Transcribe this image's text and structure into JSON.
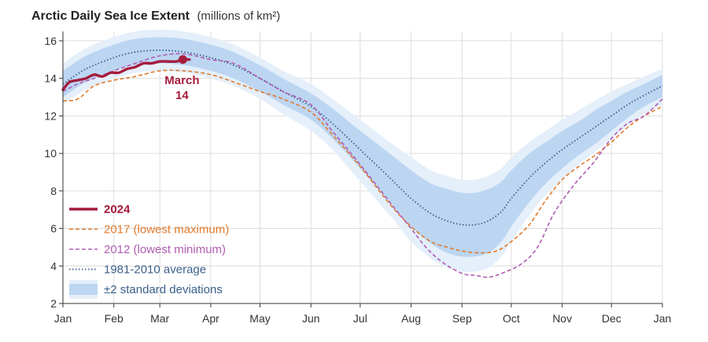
{
  "chart_data": {
    "type": "line",
    "title": "Arctic Daily Sea Ice Extent",
    "unit_suffix": "(millions of km²)",
    "xlabel": "",
    "ylabel": "",
    "x_tick_labels": [
      "Jan",
      "Feb",
      "Mar",
      "Apr",
      "May",
      "Jun",
      "Jul",
      "Aug",
      "Sep",
      "Oct",
      "Nov",
      "Dec",
      "Jan"
    ],
    "x_tick_day": [
      1,
      32,
      60,
      91,
      121,
      152,
      182,
      213,
      244,
      274,
      305,
      335,
      366
    ],
    "y_ticks": [
      2,
      4,
      6,
      8,
      10,
      12,
      14,
      16
    ],
    "ylim": [
      2,
      16.5
    ],
    "xlim": [
      1,
      366
    ],
    "grid": true,
    "legend_position": "bottom-left",
    "annotation": {
      "line1": "March",
      "line2": "14",
      "day": 74,
      "value": 15.0
    },
    "series": [
      {
        "name": "2024",
        "color": "#a61c3c",
        "style": "solid-thick",
        "x": [
          1,
          5,
          10,
          15,
          20,
          25,
          30,
          35,
          40,
          45,
          50,
          55,
          60,
          65,
          70,
          74,
          78
        ],
        "y": [
          13.4,
          13.8,
          13.9,
          14.0,
          14.2,
          14.1,
          14.3,
          14.3,
          14.5,
          14.6,
          14.8,
          14.8,
          14.9,
          14.9,
          14.9,
          15.0,
          15.0
        ]
      },
      {
        "name": "2017 (lowest maximum)",
        "color": "#e07b2e",
        "style": "dashed",
        "x": [
          1,
          10,
          20,
          32,
          45,
          60,
          75,
          91,
          105,
          121,
          135,
          152,
          165,
          182,
          200,
          213,
          225,
          235,
          244,
          255,
          265,
          274,
          285,
          295,
          305,
          315,
          325,
          335,
          345,
          355,
          366
        ],
        "y": [
          12.8,
          12.9,
          13.6,
          13.9,
          14.1,
          14.4,
          14.4,
          14.2,
          13.8,
          13.3,
          12.9,
          12.2,
          11.0,
          9.3,
          7.3,
          6.1,
          5.3,
          5.0,
          4.8,
          4.7,
          4.8,
          5.3,
          6.2,
          7.5,
          8.6,
          9.3,
          9.9,
          10.6,
          11.4,
          12.0,
          12.5
        ]
      },
      {
        "name": "2012 (lowest minimum)",
        "color": "#b05db2",
        "style": "dashed",
        "x": [
          1,
          10,
          20,
          32,
          45,
          60,
          75,
          91,
          105,
          121,
          135,
          152,
          165,
          182,
          200,
          213,
          222,
          232,
          244,
          252,
          260,
          268,
          280,
          290,
          300,
          312,
          324,
          335,
          345,
          355,
          366
        ],
        "y": [
          13.3,
          13.7,
          14.0,
          14.4,
          14.8,
          15.2,
          15.3,
          15.0,
          14.8,
          14.0,
          13.3,
          12.6,
          11.2,
          9.4,
          7.4,
          6.0,
          5.0,
          4.2,
          3.6,
          3.5,
          3.4,
          3.6,
          4.1,
          5.0,
          6.8,
          8.3,
          9.5,
          10.8,
          11.6,
          12.0,
          12.9
        ]
      },
      {
        "name": "1981-2010 average",
        "color": "#3b5f8a",
        "style": "dotted",
        "x": [
          1,
          15,
          32,
          45,
          60,
          75,
          91,
          105,
          121,
          135,
          152,
          165,
          182,
          200,
          213,
          225,
          235,
          244,
          252,
          260,
          268,
          274,
          285,
          295,
          305,
          315,
          325,
          335,
          345,
          355,
          366
        ],
        "y": [
          13.7,
          14.5,
          15.1,
          15.4,
          15.5,
          15.4,
          15.1,
          14.7,
          14.0,
          13.3,
          12.5,
          11.6,
          10.2,
          8.7,
          7.6,
          6.8,
          6.4,
          6.2,
          6.2,
          6.4,
          6.9,
          7.6,
          8.7,
          9.5,
          10.2,
          10.8,
          11.4,
          12.0,
          12.6,
          13.1,
          13.6
        ]
      }
    ],
    "bands": [
      {
        "name": "±2 standard deviations",
        "x": [
          1,
          15,
          32,
          45,
          60,
          75,
          91,
          105,
          121,
          135,
          152,
          165,
          182,
          200,
          213,
          225,
          235,
          244,
          252,
          260,
          268,
          274,
          285,
          295,
          305,
          315,
          325,
          335,
          345,
          355,
          366
        ],
        "lower": [
          13.0,
          13.8,
          14.4,
          14.7,
          14.8,
          14.7,
          14.4,
          14.0,
          13.3,
          12.6,
          11.8,
          10.8,
          9.2,
          7.4,
          6.1,
          5.2,
          4.7,
          4.5,
          4.5,
          4.7,
          5.3,
          6.1,
          7.4,
          8.4,
          9.2,
          9.9,
          10.5,
          11.2,
          11.9,
          12.5,
          13.0
        ],
        "upper": [
          14.4,
          15.2,
          15.8,
          16.1,
          16.2,
          16.1,
          15.8,
          15.4,
          14.7,
          14.0,
          13.2,
          12.4,
          11.2,
          10.0,
          9.1,
          8.4,
          8.1,
          7.9,
          7.9,
          8.1,
          8.5,
          9.1,
          10.0,
          10.6,
          11.2,
          11.7,
          12.3,
          12.8,
          13.3,
          13.7,
          14.2
        ],
        "color": "#bcd6f2"
      },
      {
        "name": "outer",
        "x": [
          1,
          15,
          32,
          45,
          60,
          75,
          91,
          105,
          121,
          135,
          152,
          165,
          182,
          200,
          213,
          225,
          235,
          244,
          252,
          260,
          268,
          274,
          285,
          295,
          305,
          315,
          325,
          335,
          345,
          355,
          366
        ],
        "lower": [
          12.6,
          13.4,
          14.0,
          14.3,
          14.4,
          14.3,
          14.0,
          13.6,
          12.9,
          12.1,
          11.2,
          10.2,
          8.5,
          6.7,
          5.3,
          4.4,
          3.9,
          3.7,
          3.7,
          3.9,
          4.5,
          5.3,
          6.7,
          7.8,
          8.6,
          9.4,
          10.1,
          10.8,
          11.5,
          12.1,
          12.6
        ],
        "upper": [
          14.8,
          15.6,
          16.2,
          16.5,
          16.6,
          16.5,
          16.2,
          15.8,
          15.1,
          14.4,
          13.7,
          12.9,
          11.8,
          10.6,
          9.8,
          9.1,
          8.8,
          8.6,
          8.6,
          8.8,
          9.2,
          9.8,
          10.6,
          11.2,
          11.8,
          12.3,
          12.8,
          13.3,
          13.7,
          14.1,
          14.5
        ],
        "color": "#e4effa"
      }
    ]
  }
}
